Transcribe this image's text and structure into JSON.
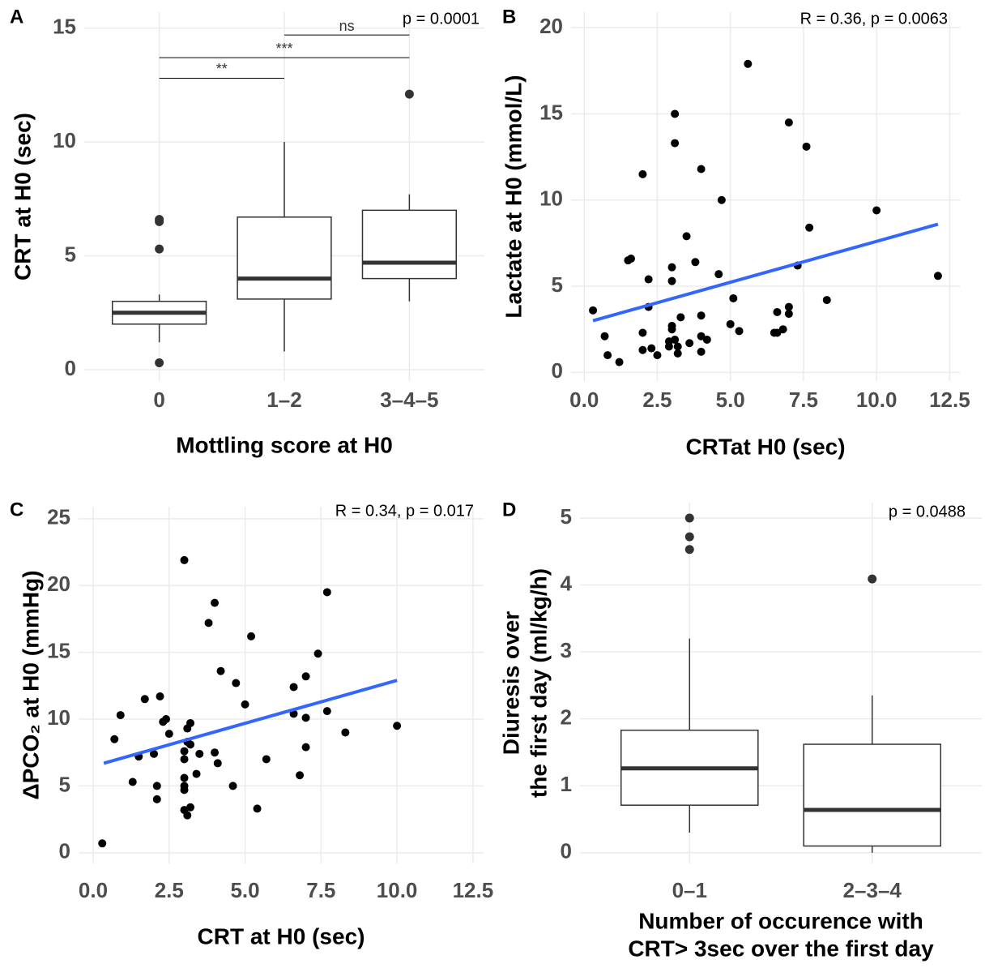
{
  "chart_data": [
    {
      "type": "box",
      "tag": "A",
      "x_label": [
        "Mottling score at H0"
      ],
      "y_label": [
        "CRT at H0 (sec)"
      ],
      "annotation": "p = 0.0001",
      "categories": [
        "0",
        "1–2",
        "3–4–5"
      ],
      "boxes": [
        {
          "whisker_low": 1.2,
          "q1": 2.0,
          "median": 2.5,
          "q3": 3.0,
          "whisker_high": 3.3,
          "outliers": [
            6.6,
            6.5,
            5.3,
            0.3
          ]
        },
        {
          "whisker_low": 0.8,
          "q1": 3.1,
          "median": 4.0,
          "q3": 6.7,
          "whisker_high": 10.0,
          "outliers": []
        },
        {
          "whisker_low": 3.0,
          "q1": 4.0,
          "median": 4.7,
          "q3": 7.0,
          "whisker_high": 7.7,
          "outliers": [
            12.1
          ]
        }
      ],
      "comparisons": [
        {
          "groups": [
            0,
            1
          ],
          "y": 12.8,
          "label": "**"
        },
        {
          "groups": [
            0,
            2
          ],
          "y": 13.7,
          "label": "***"
        },
        {
          "groups": [
            1,
            2
          ],
          "y": 14.7,
          "label": "ns"
        }
      ],
      "ylim": [
        -0.5,
        15.7
      ],
      "yticks": [
        0,
        5,
        10,
        15
      ],
      "grid": true
    },
    {
      "type": "scatter",
      "tag": "B",
      "x_label": [
        "CRTat H0 (sec)"
      ],
      "y_label": [
        "Lactate at H0 (mmol/L)"
      ],
      "annotation": "R = 0.36, p = 0.0063",
      "color": "#000000",
      "x": [
        0.3,
        0.7,
        0.8,
        1.2,
        1.5,
        1.6,
        2.0,
        2.0,
        2.0,
        2.2,
        2.2,
        2.3,
        2.5,
        3.0,
        3.0,
        3.0,
        3.0,
        2.9,
        2.9,
        3.1,
        3.1,
        3.1,
        3.2,
        3.2,
        3.3,
        3.5,
        3.6,
        3.8,
        4.0,
        4.0,
        4.0,
        4.0,
        4.2,
        4.6,
        4.7,
        5.0,
        5.1,
        5.3,
        5.6,
        6.5,
        6.6,
        6.6,
        6.8,
        7.0,
        7.0,
        7.0,
        7.3,
        7.6,
        7.7,
        8.3,
        10.0,
        12.1
      ],
      "values": [
        3.6,
        2.1,
        1.0,
        0.6,
        6.5,
        6.6,
        11.5,
        2.3,
        1.3,
        5.4,
        3.8,
        1.4,
        1.0,
        6.1,
        5.3,
        2.7,
        2.5,
        1.8,
        1.5,
        15.0,
        13.3,
        1.9,
        1.5,
        1.1,
        3.2,
        7.9,
        1.7,
        6.4,
        11.8,
        3.3,
        2.1,
        1.2,
        1.9,
        5.7,
        10.0,
        2.8,
        4.3,
        2.4,
        17.9,
        2.3,
        2.3,
        3.5,
        2.5,
        14.5,
        3.8,
        3.4,
        6.2,
        13.1,
        8.4,
        4.2,
        9.4,
        5.6
      ],
      "trend": {
        "x": [
          0.3,
          12.1
        ],
        "values": [
          3.0,
          8.6
        ],
        "color": "#3366ff"
      },
      "xlim": [
        -0.45,
        12.85
      ],
      "xticks": [
        {
          "value": 0,
          "label": "0.0"
        },
        2.5,
        {
          "value": 5,
          "label": "5.0"
        },
        7.5,
        {
          "value": 10,
          "label": "10.0"
        },
        12.5
      ],
      "ylim": [
        -0.5,
        20.9
      ],
      "yticks": [
        0,
        5,
        10,
        15,
        20
      ],
      "grid": true
    },
    {
      "type": "scatter",
      "tag": "C",
      "x_label": [
        "CRT at H0 (sec)"
      ],
      "y_label": [
        "ΔPCO₂ at H0 (mmHg)"
      ],
      "annotation": "R = 0.34, p = 0.017",
      "color": "#000000",
      "x": [
        0.3,
        0.7,
        0.9,
        1.3,
        1.5,
        1.7,
        2.0,
        2.1,
        2.1,
        2.2,
        2.3,
        2.4,
        2.5,
        3.0,
        3.0,
        3.0,
        3.0,
        3.0,
        3.0,
        3.0,
        3.1,
        3.1,
        3.2,
        3.1,
        3.2,
        3.2,
        3.4,
        3.5,
        3.8,
        4.0,
        4.0,
        4.1,
        4.2,
        4.6,
        4.7,
        5.0,
        5.2,
        5.4,
        5.7,
        6.6,
        6.6,
        6.8,
        7.0,
        7.0,
        7.0,
        7.4,
        7.7,
        7.7,
        8.3,
        10.0
      ],
      "values": [
        0.7,
        8.5,
        10.3,
        5.3,
        7.2,
        11.5,
        7.4,
        5.0,
        4.0,
        11.7,
        9.8,
        10.0,
        8.9,
        21.9,
        7.6,
        7.0,
        5.6,
        5.0,
        4.7,
        3.2,
        2.8,
        9.3,
        9.7,
        8.3,
        8.1,
        3.4,
        5.9,
        7.4,
        17.2,
        18.7,
        7.5,
        6.7,
        13.6,
        5.0,
        12.7,
        11.1,
        16.2,
        3.3,
        7.0,
        12.4,
        10.4,
        5.8,
        13.2,
        10.1,
        7.9,
        14.9,
        10.6,
        19.5,
        9.0,
        9.5
      ],
      "trend": {
        "x": [
          0.35,
          10.0
        ],
        "values": [
          6.7,
          12.9
        ],
        "color": "#3366ff"
      },
      "xlim": [
        -0.48,
        12.85
      ],
      "xticks": [
        {
          "value": 0,
          "label": "0.0"
        },
        2.5,
        {
          "value": 5,
          "label": "5.0"
        },
        7.5,
        {
          "value": 10,
          "label": "10.0"
        },
        12.5
      ],
      "ylim": [
        -0.8,
        25.9
      ],
      "yticks": [
        0,
        5,
        10,
        15,
        20,
        25
      ],
      "grid": true
    },
    {
      "type": "box",
      "tag": "D",
      "x_label": [
        "Number of occurence with",
        "CRT> 3sec over the first day"
      ],
      "y_label": [
        "Diuresis over",
        "the first day (ml/kg/h)"
      ],
      "annotation": "p = 0.0488",
      "categories": [
        "0–1",
        "2–3–4"
      ],
      "boxes": [
        {
          "whisker_low": 0.3,
          "q1": 0.71,
          "median": 1.26,
          "q3": 1.83,
          "whisker_high": 3.2,
          "outliers": [
            5.0,
            4.72,
            4.53
          ]
        },
        {
          "whisker_low": 0.0,
          "q1": 0.1,
          "median": 0.64,
          "q3": 1.62,
          "whisker_high": 2.35,
          "outliers": [
            4.09
          ]
        }
      ],
      "comparisons": [],
      "ylim": [
        -0.16,
        5.23
      ],
      "yticks": [
        0,
        1,
        2,
        3,
        4,
        5
      ],
      "grid": true
    }
  ]
}
